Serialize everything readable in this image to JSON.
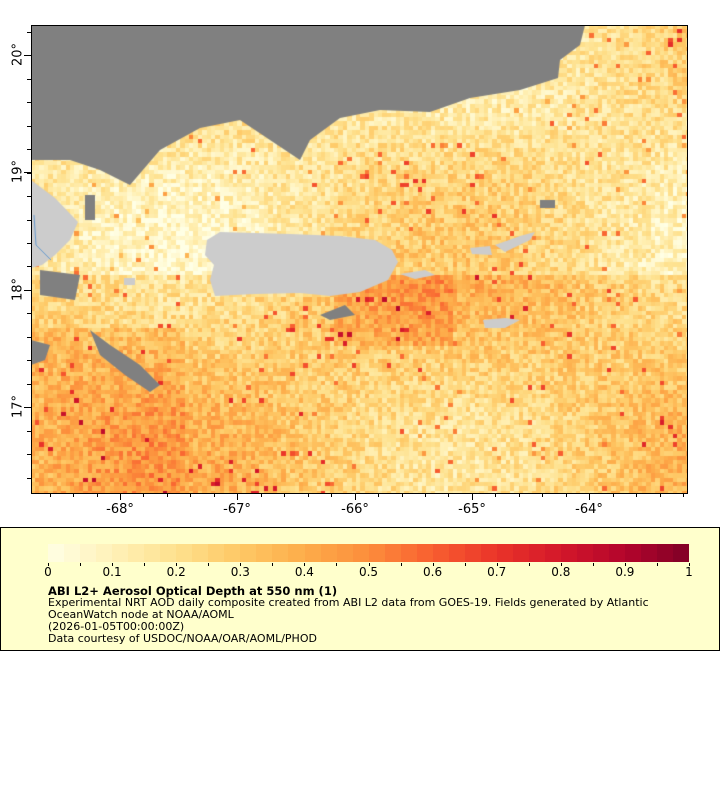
{
  "chart_data": {
    "type": "heatmap",
    "title": "ABI L2+ Aerosol Optical Depth at 550 nm (1)",
    "xlim": [
      -68.75,
      -63.15
    ],
    "ylim": [
      16.3,
      20.25
    ],
    "x_ticks": [
      "-68°",
      "-67°",
      "-66°",
      "-65°",
      "-64°"
    ],
    "y_ticks": [
      "20°",
      "19°",
      "18°",
      "17°"
    ],
    "colorbar": {
      "range": [
        0,
        1
      ],
      "ticks": [
        "0",
        "0.1",
        "0.2",
        "0.3",
        "0.4",
        "0.5",
        "0.6",
        "0.7",
        "0.8",
        "0.9",
        "1"
      ],
      "colormap": "YlOrRd",
      "stops": [
        "#ffffe5",
        "#fff1b8",
        "#fee18e",
        "#fec865",
        "#fdac4a",
        "#fc8d3b",
        "#f85e30",
        "#ea3429",
        "#d3172a",
        "#b3052c",
        "#800026"
      ]
    },
    "land_color": "#cccccc",
    "nodata_color": "#808080",
    "coast_color": "#6699cc",
    "background_color": "#ffffcc"
  },
  "legend": {
    "title": "ABI L2+ Aerosol Optical Depth at 550 nm (1)",
    "line1": "Experimental NRT AOD daily composite created from ABI L2 data from GOES-19. Fields generated by Atlantic",
    "line2": "OceanWatch node at NOAA/AOML",
    "line3": "(2026-01-05T00:00:00Z)",
    "line4": "Data courtesy of USDOC/NOAA/OAR/AOML/PHOD"
  }
}
